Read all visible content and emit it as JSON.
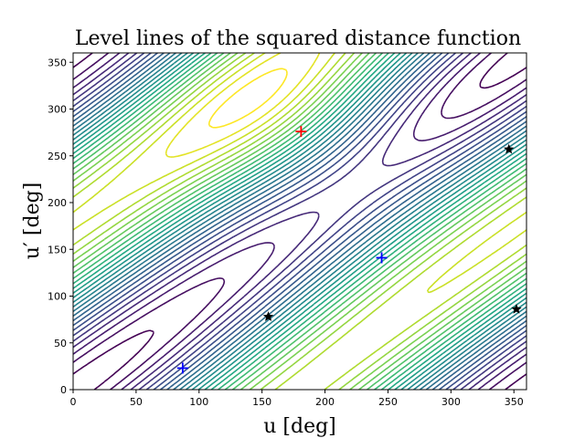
{
  "chart_data": {
    "type": "contour",
    "title": "Level lines of the squared distance function",
    "xlabel": "u [deg]",
    "ylabel": "u′ [deg]",
    "xlim": [
      0,
      360
    ],
    "ylim": [
      0,
      360
    ],
    "xticks": [
      0,
      50,
      100,
      150,
      200,
      250,
      300,
      350
    ],
    "yticks": [
      0,
      50,
      100,
      150,
      200,
      250,
      300,
      350
    ],
    "colormap": "viridis",
    "grid": false,
    "maxima": [
      {
        "x": 181,
        "y": 276,
        "marker": "plus",
        "color": "#ff0000"
      }
    ],
    "saddles": [
      {
        "x": 87,
        "y": 23,
        "marker": "plus",
        "color": "#0000ff"
      },
      {
        "x": 245,
        "y": 141,
        "marker": "plus",
        "color": "#0000ff"
      }
    ],
    "stars": [
      {
        "x": 155,
        "y": 78,
        "marker": "star",
        "color": "#000000"
      },
      {
        "x": 346,
        "y": 257,
        "marker": "star",
        "color": "#000000"
      },
      {
        "x": 352,
        "y": 86,
        "marker": "star",
        "color": "#000000"
      }
    ]
  }
}
